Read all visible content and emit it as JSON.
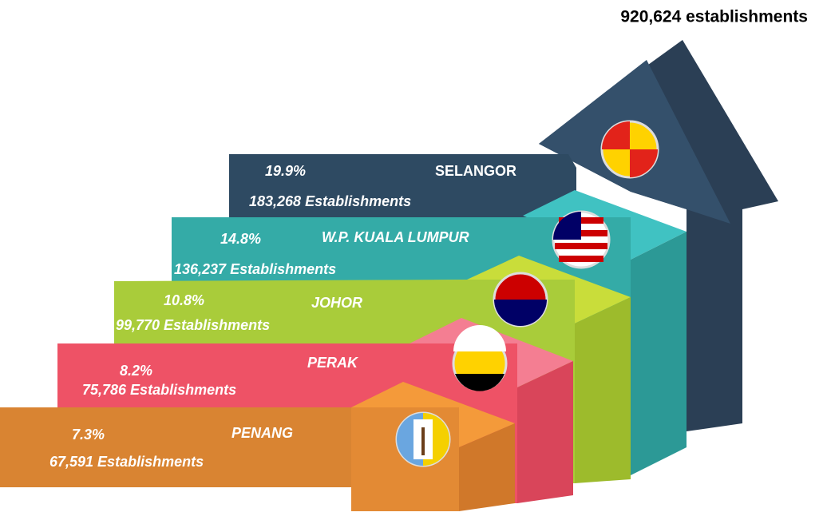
{
  "total": "920,624 establishments",
  "steps": [
    {
      "name": "SELANGOR",
      "percent": "19.9%",
      "count": "183,268 Establishments"
    },
    {
      "name": "W.P. KUALA LUMPUR",
      "percent": "14.8%",
      "count": "136,237 Establishments"
    },
    {
      "name": "JOHOR",
      "percent": "10.8%",
      "count": "99,770 Establishments"
    },
    {
      "name": "PERAK",
      "percent": "8.2%",
      "count": "75,786 Establishments"
    },
    {
      "name": "PENANG",
      "percent": "7.3%",
      "count": "67,591 Establishments"
    }
  ]
}
